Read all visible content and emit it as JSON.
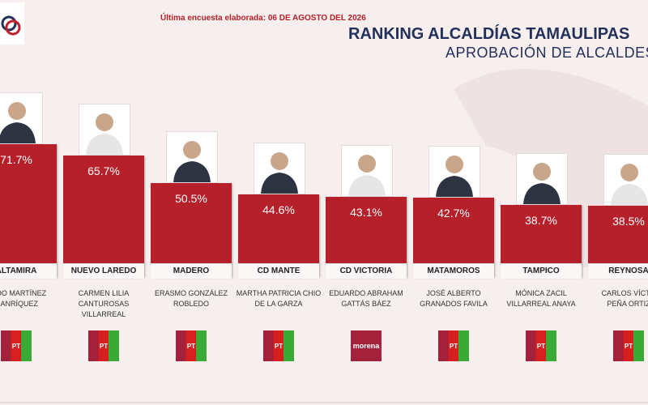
{
  "chart_data": {
    "type": "bar",
    "note": "Última encuesta elaborada: 06 DE AGOSTO DEL 2026",
    "title": "RANKING ALCALDÍAS TAMAULIPAS",
    "subtitle": "APROBACIÓN DE ALCALDES",
    "categories": [
      "ALTAMIRA",
      "NUEVO LAREDO",
      "MADERO",
      "CD MANTE",
      "CD VICTORIA",
      "MATAMOROS",
      "TAMPICO",
      "REYNOSA"
    ],
    "names": [
      "ANDO MARTÍNEZ\nMANRÍQUEZ",
      "CARMEN LILIA\nCANTUROSAS\nVILLARREAL",
      "ERASMO GONZÁLEZ\nROBLEDO",
      "MARTHA PATRICIA CHIO\nDE LA GARZA",
      "EDUARDO ABRAHAM\nGATTÁS BÁEZ",
      "JOSÉ ALBERTO\nGRANADOS FAVILA",
      "MÓNICA ZACIL\nVILLARREAL ANAYA",
      "CARLOS VÍCTO\nPEÑA ORTIZ"
    ],
    "logos": [
      "PT",
      "PT",
      "PT",
      "PT",
      "morena",
      "PT",
      "PT",
      "PT"
    ],
    "values": [
      71.7,
      65.7,
      50.5,
      44.6,
      43.1,
      42.7,
      38.7,
      38.5
    ],
    "value_labels": [
      "71.7%",
      "65.7%",
      "50.5%",
      "44.6%",
      "43.1%",
      "42.7%",
      "38.7%",
      "38.5%"
    ],
    "color": "#b5202b"
  }
}
